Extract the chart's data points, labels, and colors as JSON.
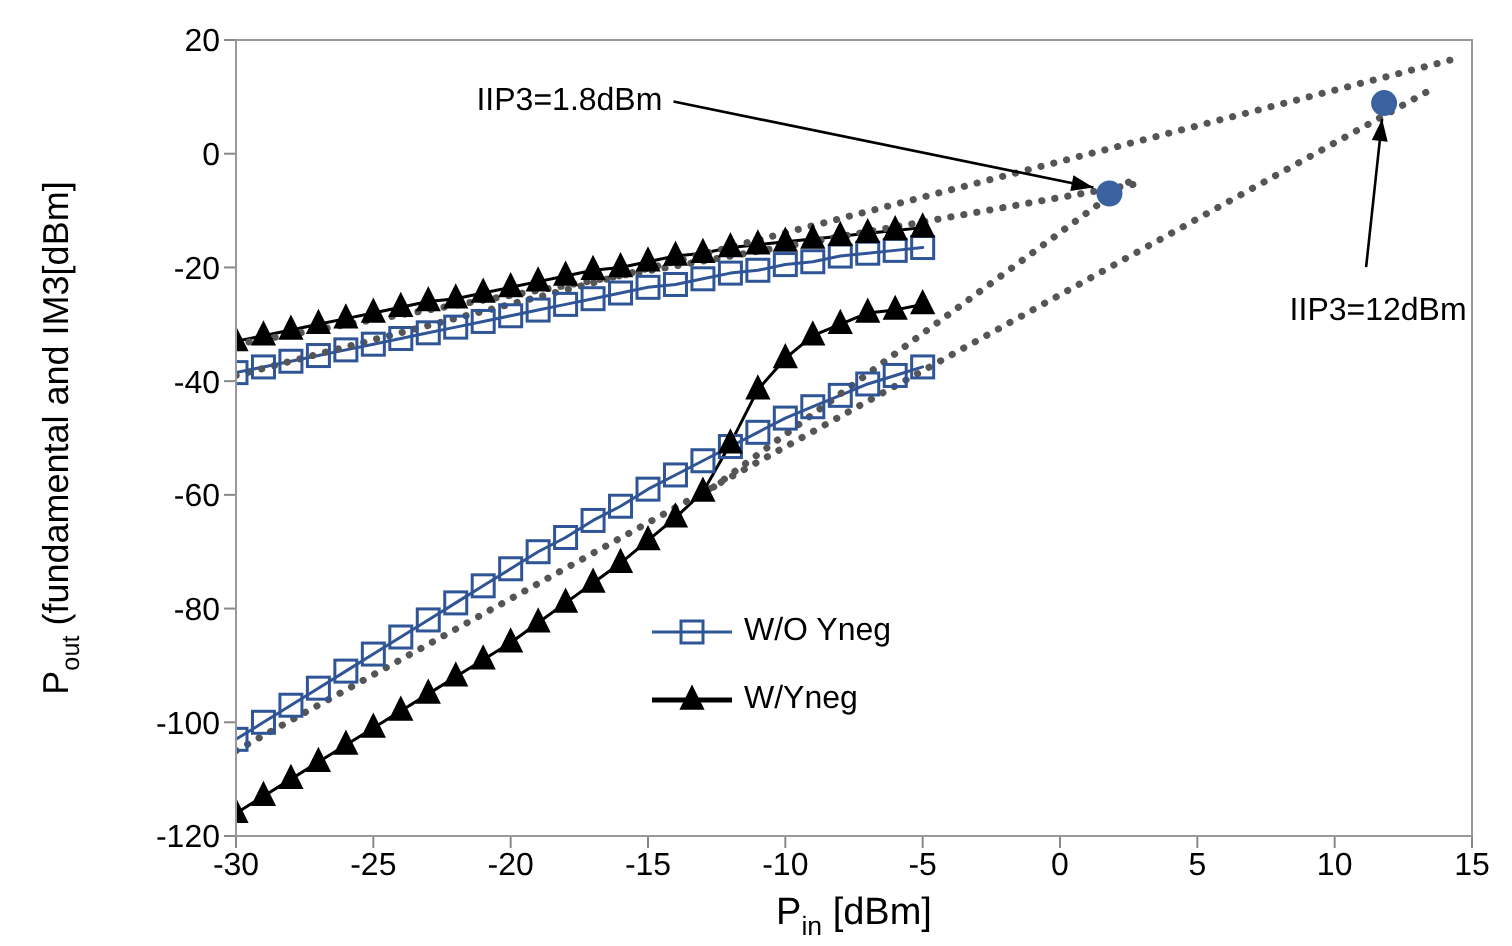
{
  "chart_data": {
    "type": "line",
    "xlabel": "P$_{in}$ [dBm]",
    "ylabel": "P$_{out}$ (fundamental and IM3[dBm]",
    "x": [
      -30,
      -29,
      -28,
      -27,
      -26,
      -25,
      -24,
      -23,
      -22,
      -21,
      -20,
      -19,
      -18,
      -17,
      -16,
      -15,
      -14,
      -13,
      -12,
      -11,
      -10,
      -9,
      -8,
      -7,
      -6,
      -5
    ],
    "series": [
      {
        "name": "W/O Yneg",
        "color": "#2f5597",
        "marker": "square",
        "values": [
          -38.5,
          -37.5,
          -36.5,
          -35.5,
          -34.5,
          -33.5,
          -32.5,
          -31.5,
          -30.5,
          -29.5,
          -28.5,
          -27.5,
          -26.5,
          -25.5,
          -24.5,
          -23.5,
          -23,
          -22,
          -21,
          -20.5,
          -19.5,
          -19,
          -18,
          -17.5,
          -17,
          -16.5
        ]
      },
      {
        "name": "W/Yneg",
        "color": "#000000",
        "marker": "triangle",
        "values": [
          -33,
          -32,
          -31,
          -30,
          -29,
          -28,
          -27,
          -26,
          -25.5,
          -24.5,
          -23.5,
          -22.5,
          -21.5,
          -20.5,
          -20,
          -19,
          -18,
          -17.5,
          -16.5,
          -16,
          -15.5,
          -15,
          -14.5,
          -14,
          -13.5,
          -13
        ]
      },
      {
        "color": "#2f5597",
        "marker": "square",
        "values": [
          -103,
          -100,
          -97,
          -94,
          -91,
          -88,
          -85,
          -82,
          -79,
          -76,
          -73,
          -70,
          -67.5,
          -64.5,
          -62,
          -59,
          -56.5,
          -54,
          -51.5,
          -49,
          -46.5,
          -44.5,
          -42.5,
          -40.5,
          -39,
          -37.5
        ]
      },
      {
        "color": "#000000",
        "marker": "triangle",
        "values": [
          -116,
          -113,
          -110,
          -107,
          -104,
          -101,
          -98,
          -95,
          -92,
          -89,
          -86,
          -82.5,
          -79,
          -75.5,
          -72,
          -68,
          -64,
          -59.5,
          -51,
          -41.5,
          -36,
          -32,
          -30,
          -28,
          -27.5,
          -26.5
        ]
      },
      {
        "color": "#555555",
        "marker": "none",
        "line_style": "dotted",
        "x": [
          -30,
          14.4
        ],
        "values": [
          -39,
          16.7
        ]
      },
      {
        "color": "#555555",
        "marker": "none",
        "line_style": "dotted",
        "x": [
          -30,
          2.9
        ],
        "values": [
          -33.5,
          -5.2
        ]
      },
      {
        "color": "#555555",
        "marker": "none",
        "line_style": "dotted",
        "x": [
          -13,
          2.5
        ],
        "values": [
          -60,
          -5
        ]
      },
      {
        "color": "#555555",
        "marker": "none",
        "line_style": "dotted",
        "x": [
          -30,
          13.4
        ],
        "values": [
          -105,
          11
        ]
      },
      {
        "type": "scatter",
        "color": "#3a62a0",
        "marker": "circle",
        "x": [
          1.8,
          11.8
        ],
        "values": [
          -7,
          8.9
        ]
      }
    ],
    "xlim": [
      -30,
      15
    ],
    "xticks": [
      -30,
      -25,
      -20,
      -15,
      -10,
      -5,
      0,
      5,
      10,
      15
    ],
    "ylim": [
      -120,
      20
    ],
    "yticks": [
      -120,
      -100,
      -80,
      -60,
      -40,
      -20,
      0,
      20
    ],
    "grid": false,
    "legend": "bottom",
    "annotations": [
      {
        "text": "IIP3=1.8dBm",
        "x": 1.8,
        "y": -7
      },
      {
        "text": "IIP3=12dBm",
        "x": 11.8,
        "y": 8.9
      }
    ]
  }
}
